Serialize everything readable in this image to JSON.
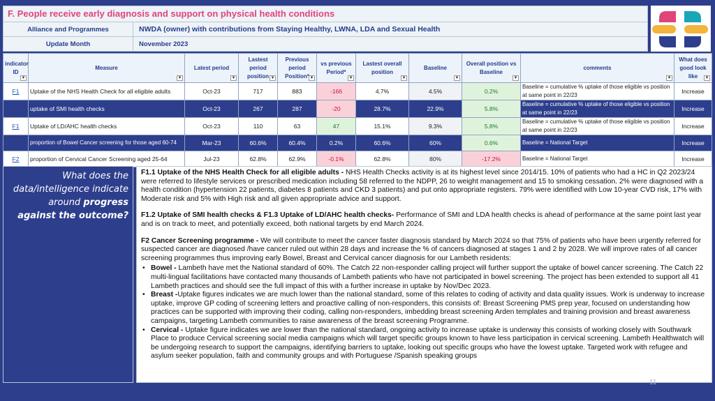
{
  "header": {
    "title": "F. People receive early diagnosis and support on physical health conditions",
    "alliance_label": "Alliance and Programmes",
    "alliance_value": "NWDA (owner) with contributions from Staying Healthy, LWNA, LDA and Sexual Health",
    "month_label": "Update Month",
    "month_value": "November 2023"
  },
  "logo": {
    "icon": "plus-logo-icon"
  },
  "table": {
    "columns": [
      "indicator ID",
      "Measure",
      "Latest period",
      "Lastest period position",
      "Previous period Position*",
      "vs previous Period*",
      "Lastest overall position",
      "Baseline",
      "Overall position vs Baseline",
      "comments",
      "What does good look like"
    ],
    "rows": [
      {
        "id": "F1",
        "measure": "Uptake of the NHS Health Check for all eligible adults",
        "latest": "Oct-23",
        "pos": "717",
        "prev": "883",
        "vs": "-166",
        "overall": "4.7%",
        "baseline": "4.5%",
        "vsbase": "0.2%",
        "comment": "Baseline = cumulative % uptake of those eligible vs position at same point in 22/23",
        "good": "Increase"
      },
      {
        "id": "",
        "measure": "uptake of SMI health checks",
        "latest": "Oct-23",
        "pos": "267",
        "prev": "287",
        "vs": "-20",
        "overall": "28.7%",
        "baseline": "22.9%",
        "vsbase": "5.8%",
        "comment": "Baseline = cumulative % uptake of those eligible vs position at same point in 22/23",
        "good": "Increase"
      },
      {
        "id": "F1",
        "measure": "Uptake of LD/AHC health checks",
        "latest": "Oct-23",
        "pos": "110",
        "prev": "63",
        "vs": "47",
        "overall": "15.1%",
        "baseline": "9.3%",
        "vsbase": "5.8%",
        "comment": "Baseline = cumulative % uptake of those eligible vs position at same point in 22/23",
        "good": "Increase"
      },
      {
        "id": "",
        "measure": "proportion of Bowel Cancer screening for those aged 60-74",
        "latest": "Mar-23",
        "pos": "60.6%",
        "prev": "60.4%",
        "vs": "0.2%",
        "overall": "60.6%",
        "baseline": "60%",
        "vsbase": "0.6%",
        "comment": "Baseline = National Target",
        "good": "Increase"
      },
      {
        "id": "F2",
        "measure": "proportion of Cervical Cancer Screening aged 25-64",
        "latest": "Jul-23",
        "pos": "62.8%",
        "prev": "62.9%",
        "vs": "-0.1%",
        "overall": "62.8%",
        "baseline": "80%",
        "vsbase": "-17.2%",
        "comment": "Baseline = National Target",
        "good": "Increase"
      }
    ]
  },
  "question": {
    "line1": "What does the data/intelligence indicate around ",
    "bold": "progress against the outcome?"
  },
  "narrative": {
    "p1_head": "F1.1 Uptake of the NHS Health Check for all eligible adults - ",
    "p1_body": "NHS Health Checks activity is at its highest level since 2014/15. 10% of patients who had a HC in Q2 2023/24 were referred to lifestyle services or prescribed medication including 58 referred to the NDPP, 26 to weight management and 15 to smoking cessation. 2% were diagnosed with a health condition (hypertension 22 patients, diabetes 8 patients and CKD 3 patients) and put onto appropriate registers. 79% were identified with Low 10-year CVD risk, 17% with Moderate risk and 5% with High risk and all given appropriate advice and support.",
    "p2_head": "F1.2 Uptake of SMI health checks & F1.3 Uptake of LD/AHC health checks-",
    "p2_body": " Performance of SMI and LDA health checks is ahead of performance at the same point last year and is on track to meet, and potentially exceed, both national targets by end March 2024.",
    "p3_head": "F2 Cancer Screening programme - ",
    "p3_body": "We will contribute to meet the cancer faster diagnosis standard by March 2024 so that 75% of patients who have been urgently referred for suspected cancer are diagnosed /have cancer ruled out within 28 days and increase the % of cancers diagnosed at stages 1 and 2 by 2028. We will improve rates of all cancer screening programmes thus improving early Bowel, Breast and Cervical cancer diagnosis for our Lambeth residents:",
    "b1_head": "Bowel - ",
    "b1_body": "Lambeth have met the  National standard of  60%. The Catch 22  non-responder calling project  will further support the uptake of bowel cancer screening. The Catch 22 multi-lingual facilitations have  contacted many thousands of Lambeth patients who have not participated in bowel screening. The project has been extended to support all 41 Lambeth practices and should see the full  impact of this with a further increase in uptake by Nov/Dec 2023.",
    "b2_head": "Breast -",
    "b2_body": "Uptake figures indicates we are much lower than the national standard, some of this relates to coding of activity and data quality issues. Work is underway to increase uptake, improve GP coding of screening letters and proactive calling of non-responders, this consists of: Breast Screening PMS prep year, focused on understanding how practices can be supported with improving their coding, calling non-responders, imbedding breast screening Arden templates and training provision and breast awareness campaigns, targeting Lambeth communities to raise awareness of the breast screening Programme.",
    "b3_head": " Cervical - ",
    "b3_body": "Uptake figure indicates we are lower than the national standard, ongoing activity to increase uptake is underway this consists of working closely with Southwark Place to produce Cervical screening social media campaigns which will target specific groups known to have less participation in cervical screening. Lambeth Healthwatch will be undergoing research  to support the campaigns,  identifying barriers to uptake, looking out specific groups who have the lowest uptake. Targeted work with refugee and asylum seeker population, faith and community groups and with Portuguese /Spanish speaking groups"
  },
  "page_number": "11"
}
